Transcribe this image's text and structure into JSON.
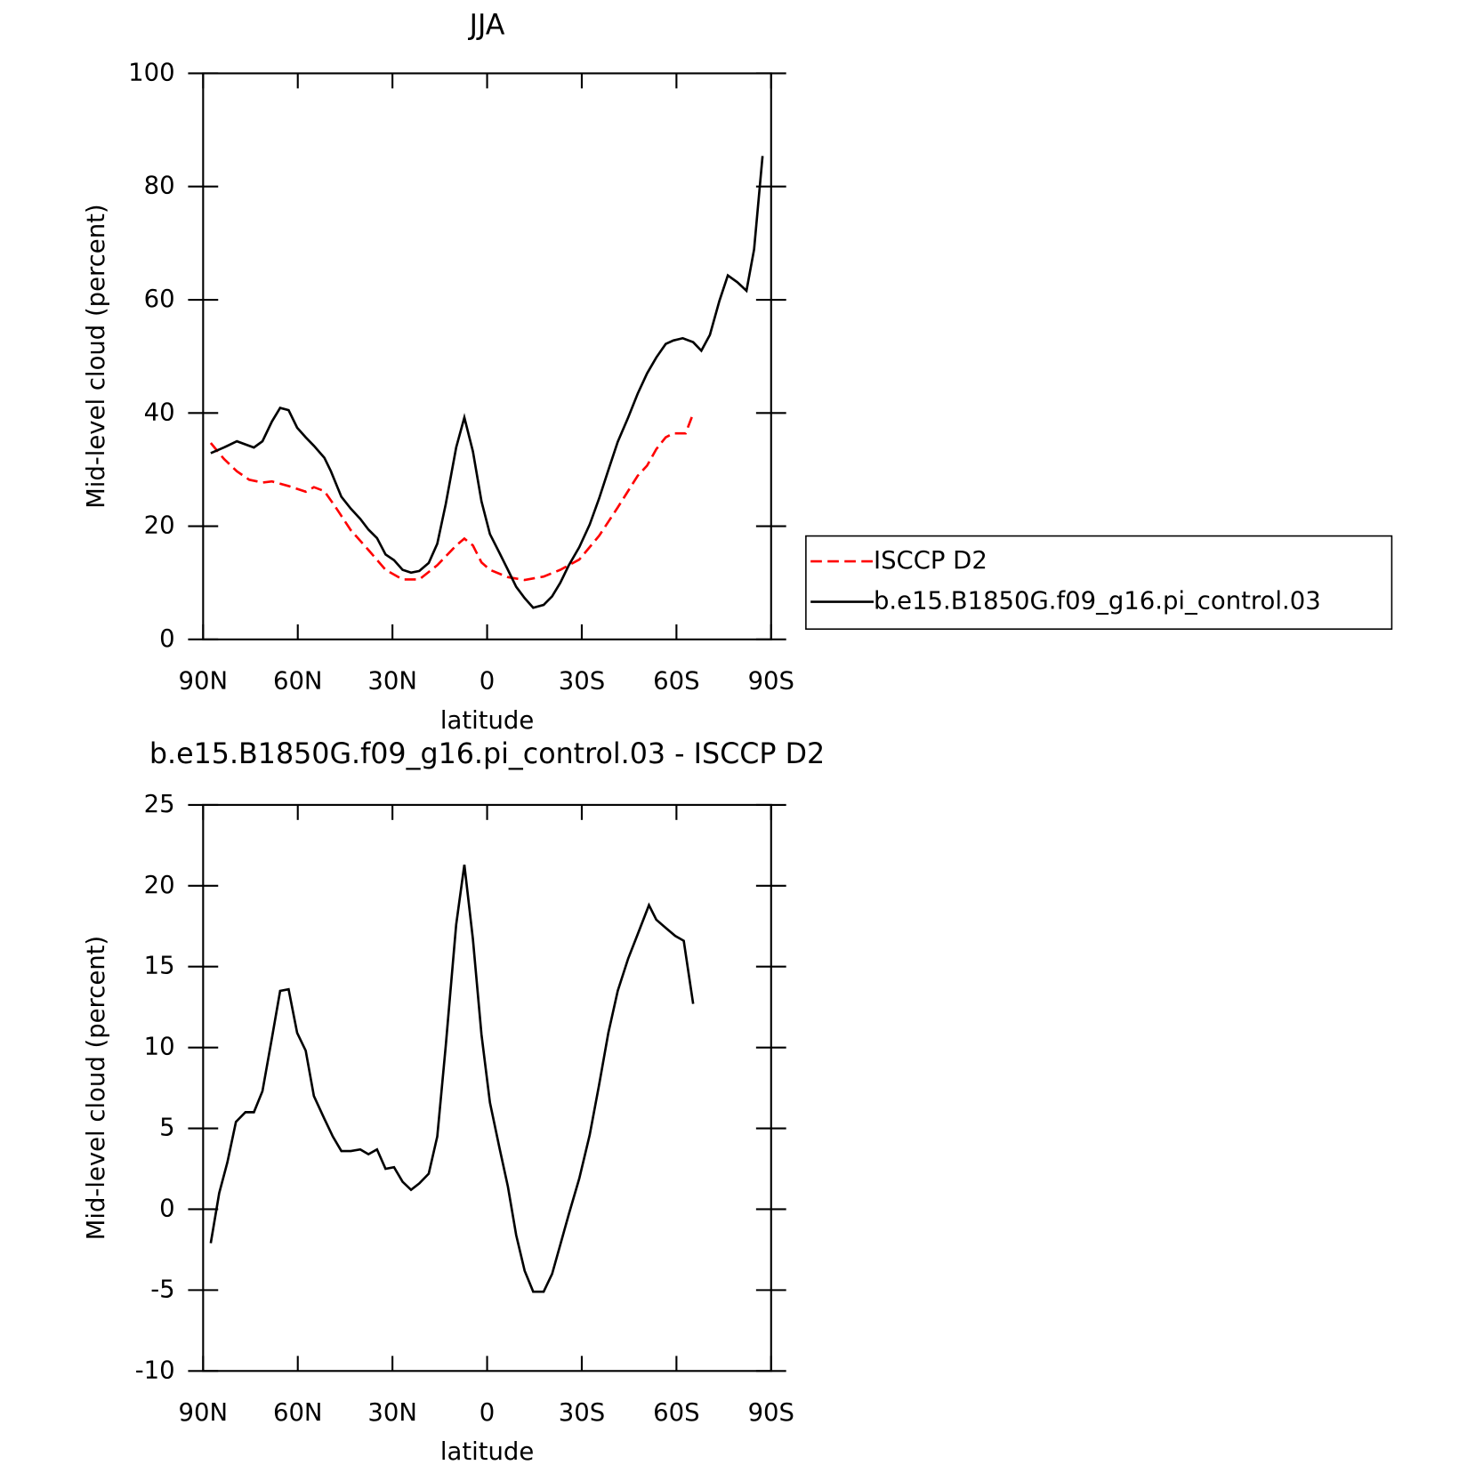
{
  "chart_data": [
    {
      "type": "line",
      "title": "JJA",
      "xlabel": "latitude",
      "ylabel": "Mid-level cloud (percent)",
      "xlim": [
        90,
        -90
      ],
      "xticks": [
        {
          "value": 90,
          "label": "90N"
        },
        {
          "value": 60,
          "label": "60N"
        },
        {
          "value": 30,
          "label": "30N"
        },
        0,
        {
          "value": -30,
          "label": "30S"
        },
        {
          "value": -60,
          "label": "60S"
        },
        {
          "value": -90,
          "label": "90S"
        }
      ],
      "ylim": [
        0,
        100
      ],
      "yticks": [
        0,
        20,
        40,
        60,
        80,
        100
      ],
      "legend": "right",
      "series": [
        {
          "name": "ISCCP D2",
          "color": "#ff0000",
          "dashed": true,
          "x": [
            87.6,
            83.4,
            79.3,
            75.4,
            71.2,
            68.2,
            62.9,
            57.5,
            54.9,
            51.6,
            48.3,
            43.2,
            37.6,
            32.2,
            26.8,
            21.5,
            15.8,
            9.8,
            7.2,
            4.5,
            1.8,
            -0.9,
            -6.6,
            -11.9,
            -17.9,
            -23.2,
            -29.2,
            -35.5,
            -41.4,
            -47.7,
            -50.7,
            -53.6,
            -56.6,
            -59.0,
            -62.0,
            -62.9,
            -65.3
          ],
          "values": [
            34.7,
            31.9,
            29.7,
            28.2,
            27.7,
            27.9,
            27.1,
            26.1,
            26.9,
            26.2,
            23.6,
            19.3,
            15.8,
            12.3,
            10.6,
            10.6,
            13.1,
            16.6,
            17.8,
            16.6,
            13.6,
            12.3,
            11.0,
            10.5,
            11.1,
            12.3,
            14.1,
            18.3,
            23.3,
            28.9,
            30.7,
            33.6,
            35.7,
            36.4,
            36.4,
            36.4,
            39.9
          ]
        },
        {
          "name": "b.e15.B1850G.f09_g16.pi_control.03",
          "color": "#000000",
          "dashed": false,
          "x": [
            87.6,
            83.4,
            79.3,
            73.9,
            71.2,
            68.2,
            65.6,
            62.9,
            60.2,
            57.5,
            54.9,
            51.6,
            49.5,
            46.2,
            43.2,
            40.2,
            37.6,
            34.9,
            32.2,
            29.5,
            26.8,
            24.1,
            21.5,
            18.5,
            15.8,
            13.1,
            9.8,
            7.2,
            4.5,
            1.8,
            -0.9,
            -3.9,
            -6.6,
            -9.2,
            -11.9,
            -14.6,
            -17.9,
            -20.6,
            -23.2,
            -25.9,
            -29.2,
            -32.5,
            -35.5,
            -38.4,
            -41.4,
            -44.7,
            -47.7,
            -50.7,
            -53.6,
            -56.6,
            -59.0,
            -62.0,
            -65.3,
            -67.9,
            -70.6,
            -73.6,
            -76.3,
            -79.3,
            -82.2,
            -84.6,
            -87.3
          ],
          "values": [
            32.9,
            33.9,
            35.0,
            33.9,
            35.0,
            38.5,
            40.9,
            40.5,
            37.4,
            35.7,
            34.2,
            32.1,
            29.7,
            25.2,
            23.1,
            21.3,
            19.4,
            17.9,
            15.0,
            14.0,
            12.3,
            11.8,
            12.1,
            13.5,
            16.9,
            23.9,
            33.9,
            39.2,
            33.2,
            24.4,
            18.6,
            15.3,
            12.3,
            9.3,
            7.3,
            5.6,
            6.1,
            7.6,
            10.0,
            13.1,
            16.3,
            20.3,
            24.9,
            29.9,
            34.9,
            39.2,
            43.4,
            47.0,
            49.8,
            52.2,
            52.8,
            53.2,
            52.5,
            51.0,
            53.8,
            59.8,
            64.3,
            63.1,
            61.6,
            68.9,
            85.4
          ]
        }
      ]
    },
    {
      "type": "line",
      "title": "b.e15.B1850G.f09_g16.pi_control.03 - ISCCP D2",
      "xlabel": "latitude",
      "ylabel": "Mid-level cloud (percent)",
      "xlim": [
        90,
        -90
      ],
      "xticks": [
        {
          "value": 90,
          "label": "90N"
        },
        {
          "value": 60,
          "label": "60N"
        },
        {
          "value": 30,
          "label": "30N"
        },
        0,
        {
          "value": -30,
          "label": "30S"
        },
        {
          "value": -60,
          "label": "60S"
        },
        {
          "value": -90,
          "label": "90S"
        }
      ],
      "ylim": [
        -10,
        25
      ],
      "yticks": [
        -10,
        -5,
        0,
        5,
        10,
        15,
        20,
        25
      ],
      "color": "#000000",
      "x": [
        87.6,
        84.9,
        82.3,
        79.6,
        76.6,
        73.9,
        71.2,
        68.2,
        65.6,
        62.9,
        60.2,
        57.5,
        54.9,
        51.6,
        48.9,
        46.2,
        43.2,
        40.2,
        37.6,
        34.9,
        32.2,
        29.5,
        26.8,
        24.1,
        21.5,
        18.5,
        15.8,
        13.1,
        9.8,
        7.2,
        4.5,
        1.8,
        -0.9,
        -3.9,
        -6.6,
        -9.2,
        -11.9,
        -14.6,
        -17.9,
        -20.6,
        -23.2,
        -25.9,
        -29.2,
        -32.5,
        -35.5,
        -38.4,
        -41.4,
        -44.7,
        -47.7,
        -51.3,
        -53.6,
        -56.6,
        -59.6,
        -62.3,
        -65.3
      ],
      "values": [
        -2.1,
        1.0,
        2.9,
        5.4,
        6.0,
        6.0,
        7.3,
        10.6,
        13.5,
        13.6,
        10.9,
        9.8,
        7.0,
        5.6,
        4.5,
        3.6,
        3.6,
        3.7,
        3.4,
        3.7,
        2.5,
        2.6,
        1.7,
        1.2,
        1.6,
        2.2,
        4.5,
        10.1,
        17.6,
        21.3,
        16.7,
        10.8,
        6.6,
        3.8,
        1.4,
        -1.6,
        -3.8,
        -5.1,
        -5.1,
        -4.0,
        -2.2,
        -0.3,
        1.9,
        4.6,
        7.7,
        10.9,
        13.5,
        15.5,
        17.0,
        18.8,
        17.9,
        17.4,
        16.9,
        16.6,
        12.7
      ]
    }
  ]
}
